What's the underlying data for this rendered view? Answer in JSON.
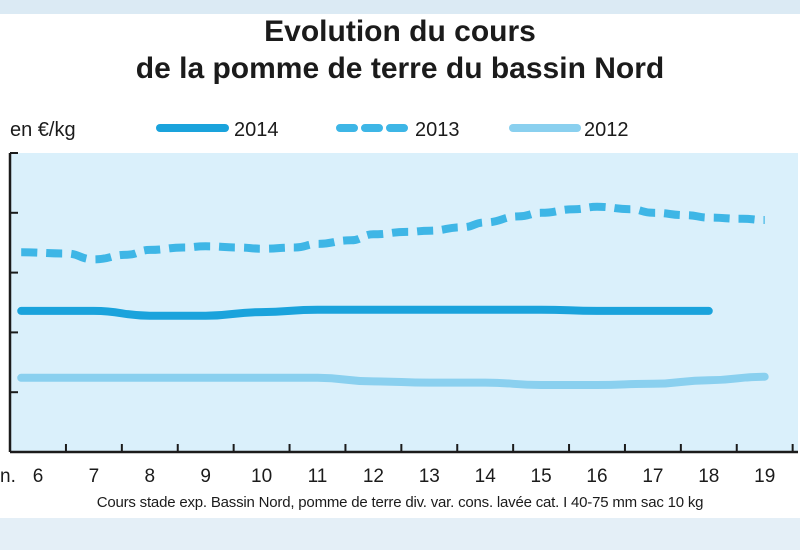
{
  "chart_data": {
    "type": "line",
    "title_lines": [
      "Evolution du cours",
      "de la pomme de terre du bassin Nord"
    ],
    "unit_label": "en €/kg",
    "x_first_partial_label": "n.",
    "categories": [
      "6",
      "7",
      "8",
      "9",
      "10",
      "11",
      "12",
      "13",
      "14",
      "15",
      "16",
      "17",
      "18",
      "19"
    ],
    "ylim": [
      0,
      0.25
    ],
    "y_gridlines": [
      0.05,
      0.1,
      0.15,
      0.2
    ],
    "grid": "horizontal tick marks on left axis only",
    "legend_placement": "top",
    "series": [
      {
        "name": "2014",
        "style": "solid",
        "color": "#1aa3dc",
        "x": [
          5.7,
          7,
          8,
          9,
          10,
          11,
          12,
          13,
          14,
          15,
          16,
          17,
          18
        ],
        "values": [
          0.118,
          0.118,
          0.114,
          0.114,
          0.117,
          0.119,
          0.119,
          0.119,
          0.119,
          0.119,
          0.118,
          0.118,
          0.118
        ]
      },
      {
        "name": "2013",
        "style": "dashed",
        "color": "#3eb6e6",
        "x": [
          5.7,
          6.5,
          7,
          7.6,
          8,
          8.6,
          9,
          9.6,
          10,
          10.6,
          11,
          11.6,
          12,
          12.6,
          13,
          13.6,
          14,
          14.6,
          15,
          15.6,
          16,
          16.6,
          17,
          17.6,
          18,
          18.6,
          19
        ],
        "values": [
          0.167,
          0.166,
          0.161,
          0.165,
          0.169,
          0.171,
          0.172,
          0.171,
          0.17,
          0.171,
          0.174,
          0.177,
          0.182,
          0.184,
          0.185,
          0.188,
          0.192,
          0.197,
          0.2,
          0.203,
          0.205,
          0.203,
          0.2,
          0.198,
          0.196,
          0.195,
          0.194
        ]
      },
      {
        "name": "2012",
        "style": "solid",
        "color": "#8ad0ef",
        "x": [
          5.7,
          7,
          8,
          9,
          10,
          11,
          12,
          13,
          14,
          15,
          16,
          17,
          18,
          19
        ],
        "values": [
          0.062,
          0.062,
          0.062,
          0.062,
          0.062,
          0.062,
          0.059,
          0.058,
          0.058,
          0.056,
          0.056,
          0.057,
          0.06,
          0.063
        ]
      }
    ],
    "source_note": "Cours stade exp. Bassin Nord, pomme de terre div. var. cons. lavée cat. I 40-75 mm sac 10 kg"
  },
  "colors": {
    "plot_background": "#daf0fb",
    "axis": "#1b1b1b"
  }
}
